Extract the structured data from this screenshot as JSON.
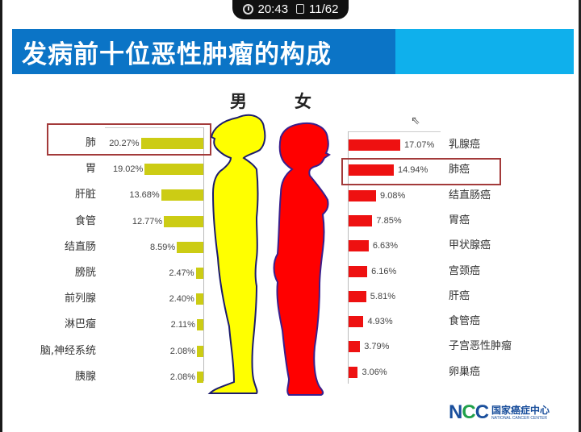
{
  "status": {
    "time": "20:43",
    "page": "11/62",
    "clock_icon": "clock-icon",
    "page_icon": "page-icon"
  },
  "title": "发病前十位恶性肿瘤的构成",
  "labels": {
    "male": "男",
    "female": "女"
  },
  "chart_data": [
    {
      "type": "bar",
      "orientation": "horizontal",
      "title": "男",
      "bar_color": "#cccc14",
      "categories": [
        "肺",
        "胃",
        "肝脏",
        "食管",
        "结直肠",
        "膀胱",
        "前列腺",
        "淋巴瘤",
        "脑,神经系统",
        "胰腺"
      ],
      "values": [
        20.27,
        19.02,
        13.68,
        12.77,
        8.59,
        2.47,
        2.4,
        2.11,
        2.08,
        2.08
      ],
      "value_labels": [
        "20.27%",
        "19.02%",
        "13.68%",
        "12.77%",
        "8.59%",
        "2.47%",
        "2.40%",
        "2.11%",
        "2.08%",
        "2.08%"
      ],
      "unit": "%",
      "highlighted": "肺"
    },
    {
      "type": "bar",
      "orientation": "horizontal",
      "title": "女",
      "bar_color": "#ee1111",
      "categories": [
        "乳腺癌",
        "肺癌",
        "结直肠癌",
        "胃癌",
        "甲状腺癌",
        "宫颈癌",
        "肝癌",
        "食管癌",
        "子宫恶性肿瘤",
        "卵巢癌"
      ],
      "values": [
        17.07,
        14.94,
        9.08,
        7.85,
        6.63,
        6.16,
        5.81,
        4.93,
        3.79,
        3.06
      ],
      "value_labels": [
        "17.07%",
        "14.94%",
        "9.08%",
        "7.85%",
        "6.63%",
        "6.16%",
        "5.81%",
        "4.93%",
        "3.79%",
        "3.06%"
      ],
      "unit": "%",
      "highlighted": "肺癌"
    }
  ],
  "logo": {
    "mark": "NCC",
    "name_cn": "国家癌症中心",
    "name_en": "NATIONAL CANCER CENTER"
  },
  "colors": {
    "title_dark": "#0b74c6",
    "title_light": "#0fb0ec",
    "male_fill": "#ffff00",
    "female_fill": "#ff0000",
    "highlight_box": "#a33a3a"
  }
}
